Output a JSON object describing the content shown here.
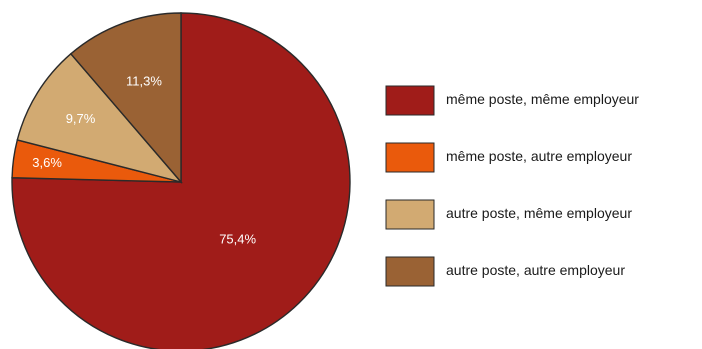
{
  "chart_data": {
    "type": "pie",
    "slices": [
      {
        "label": "même poste, même employeur",
        "value": 75.4,
        "value_label": "75,4%",
        "color": "#A01C19"
      },
      {
        "label": "même poste, autre employeur",
        "value": 3.6,
        "value_label": "3,6%",
        "color": "#EA5A0C"
      },
      {
        "label": "autre poste, même employeur",
        "value": 9.7,
        "value_label": "9,7%",
        "color": "#D2AA72"
      },
      {
        "label": "autre poste, autre employeur",
        "value": 11.3,
        "value_label": "11,3%",
        "color": "#9A6234"
      }
    ],
    "start": "top",
    "direction": "clockwise",
    "legend_position": "right"
  }
}
